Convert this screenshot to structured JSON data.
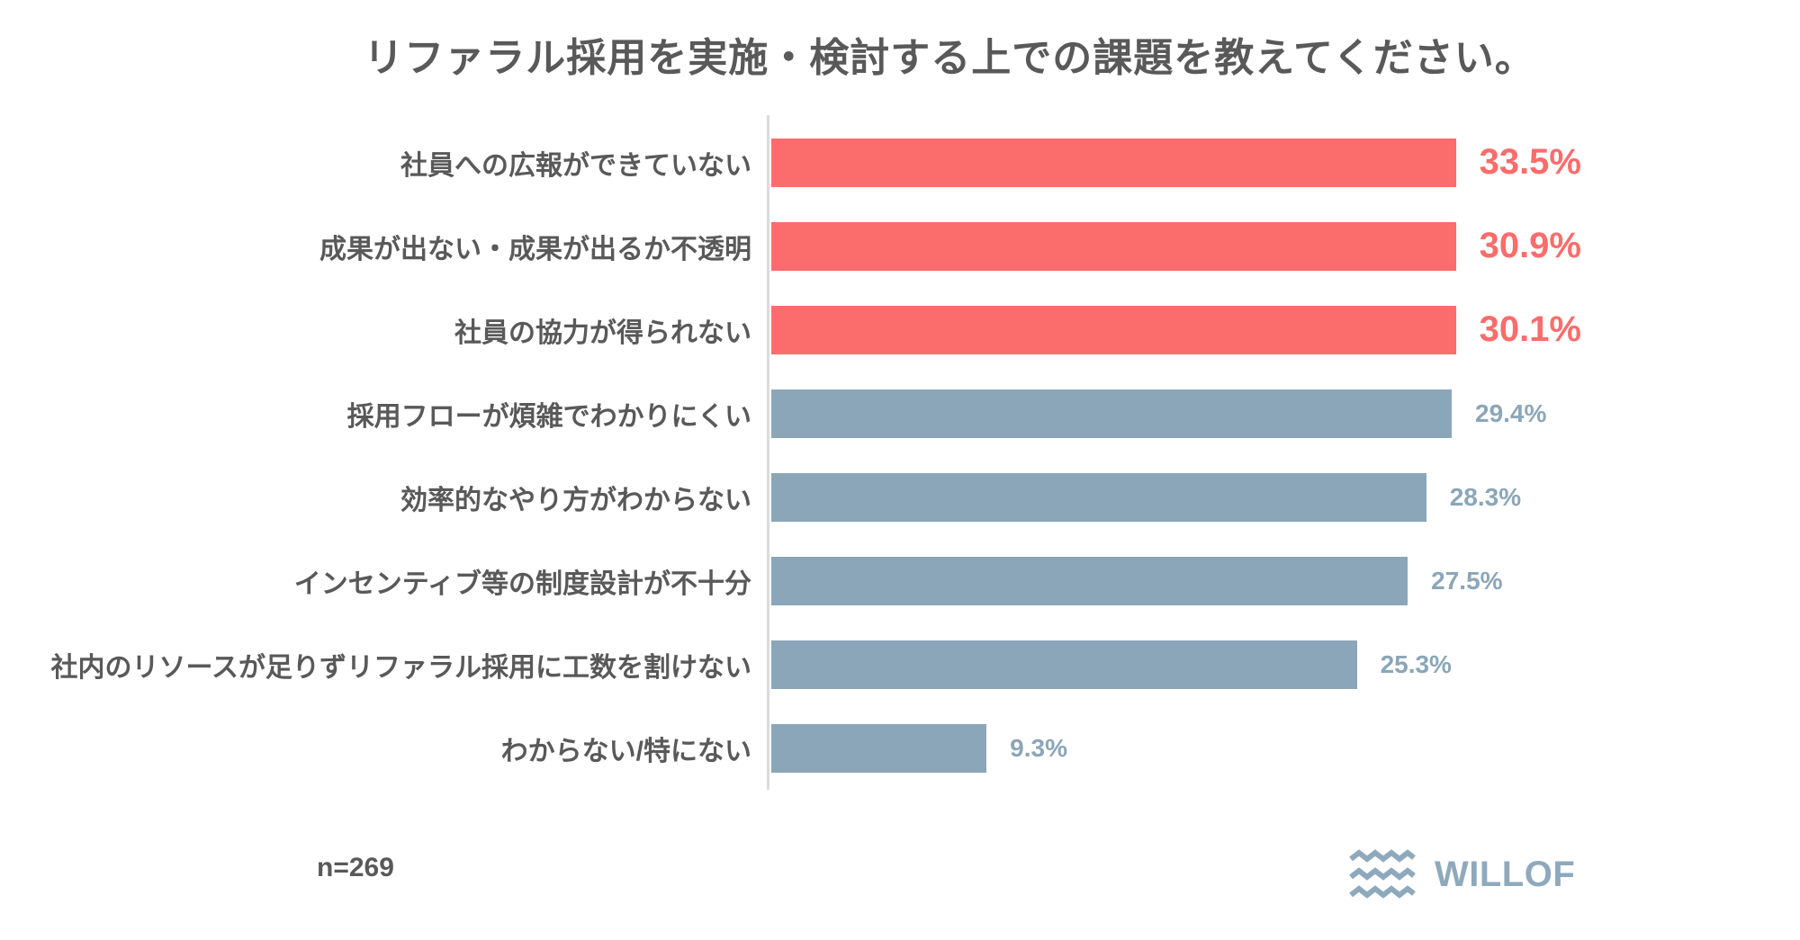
{
  "page": {
    "background": "#FFFFFF"
  },
  "chart_data": {
    "type": "bar",
    "orientation": "horizontal",
    "title": "リファラル採用を実施・検討する上での課題を教えてください。",
    "categories": [
      "社員への広報ができていない",
      "成果が出ない・成果が出るか不透明",
      "社員の協力が得られない",
      "採用フローが煩雑でわかりにくい",
      "効率的なやり方がわからない",
      "インセンティブ等の制度設計が不十分",
      "社内のリソースが足りずリファラル採用に工数を割けない",
      "わからない/特にない"
    ],
    "values": [
      33.5,
      30.9,
      30.1,
      29.4,
      28.3,
      27.5,
      25.3,
      9.3
    ],
    "value_labels": [
      "33.5%",
      "30.9%",
      "30.1%",
      "29.4%",
      "28.3%",
      "27.5%",
      "25.3%",
      "9.3%"
    ],
    "xlim": [
      0,
      35
    ],
    "grid": false,
    "legend": false,
    "highlight_count": 3,
    "colors": {
      "highlight": "#FB6C6C",
      "base": "#8BA6B8",
      "label_text": "#595959",
      "title_text": "#595959",
      "axis_line": "#DBDBDB"
    }
  },
  "footer": {
    "sample_note": "n=269",
    "brand": "WILLOF",
    "brand_color": "#8FA9BC",
    "logo_icon": "triple-wave-icon"
  }
}
